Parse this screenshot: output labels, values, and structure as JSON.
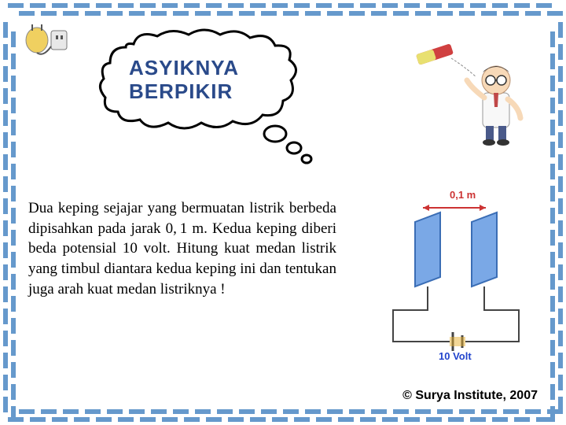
{
  "border": {
    "dash_color": "#6699cc",
    "h_dash_count": 25,
    "v_dash_count": 18
  },
  "bubble": {
    "line1": "ASYIKNYA",
    "line2": "BERPIKIR",
    "text_color": "#2a4a8a",
    "fontsize": 26
  },
  "problem_text": "Dua keping sejajar yang bermuatan listrik berbeda dipisahkan pada jarak 0, 1 m. Kedua keping diberi beda potensial 10 volt. Hitung kuat medan listrik yang timbul diantara kedua keping ini dan tentukan juga arah kuat medan listriknya !",
  "diagram": {
    "distance_label": "0,1 m",
    "voltage_label": "10 Volt",
    "plate_color": "#7aa8e6",
    "plate_edge": "#3a6db5",
    "wire_color": "#444444",
    "battery_color": "#e8b030",
    "distance_color": "#cc3333",
    "voltage_color": "#2244cc"
  },
  "copyright": "© Surya Institute, 2007",
  "colors": {
    "background": "#ffffff",
    "text": "#000000"
  }
}
